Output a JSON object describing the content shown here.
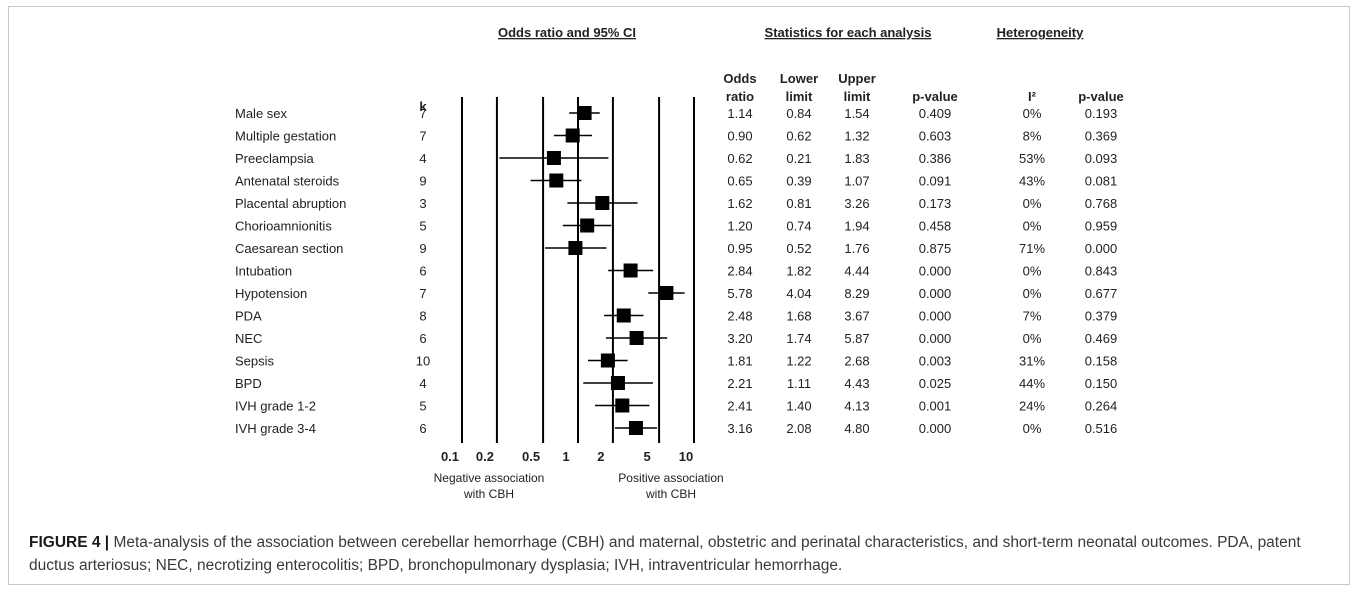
{
  "headers": {
    "or_ci": "Odds ratio and 95% CI",
    "stats": "Statistics for each analysis",
    "heterogeneity": "Heterogeneity",
    "k": "k",
    "odds_ratio_line1": "Odds",
    "odds_ratio_line2": "ratio",
    "lower_line1": "Lower",
    "lower_line2": "limit",
    "upper_line1": "Upper",
    "upper_line2": "limit",
    "pvalue": "p-value",
    "i2": "I²",
    "het_pvalue": "p-value"
  },
  "axis_notes": {
    "negative_line1": "Negative association",
    "negative_line2": "with CBH",
    "positive_line1": "Positive association",
    "positive_line2": "with CBH"
  },
  "caption": {
    "label": "FIGURE 4 |",
    "text": " Meta-analysis of the association between cerebellar hemorrhage (CBH) and maternal, obstetric and perinatal characteristics, and short-term neonatal outcomes. PDA, patent ductus arteriosus; NEC, necrotizing enterocolitis; BPD, bronchopulmonary dysplasia; IVH, intraventricular hemorrhage."
  },
  "chart_data": {
    "type": "forest",
    "x_scale": "log",
    "xlim": [
      0.1,
      10
    ],
    "x_ticks": [
      "0.1",
      "0.2",
      "0.5",
      "1",
      "2",
      "5",
      "10"
    ],
    "x_tick_values": [
      0.1,
      0.2,
      0.5,
      1,
      2,
      5,
      10
    ],
    "marker_color": "#000000",
    "rows": [
      {
        "label": "Male sex",
        "k": "7",
        "or": "1.14",
        "lower": "0.84",
        "upper": "1.54",
        "p": "0.409",
        "i2": "0%",
        "p_het": "0.193"
      },
      {
        "label": "Multiple gestation",
        "k": "7",
        "or": "0.90",
        "lower": "0.62",
        "upper": "1.32",
        "p": "0.603",
        "i2": "8%",
        "p_het": "0.369"
      },
      {
        "label": "Preeclampsia",
        "k": "4",
        "or": "0.62",
        "lower": "0.21",
        "upper": "1.83",
        "p": "0.386",
        "i2": "53%",
        "p_het": "0.093"
      },
      {
        "label": "Antenatal steroids",
        "k": "9",
        "or": "0.65",
        "lower": "0.39",
        "upper": "1.07",
        "p": "0.091",
        "i2": "43%",
        "p_het": "0.081"
      },
      {
        "label": "Placental abruption",
        "k": "3",
        "or": "1.62",
        "lower": "0.81",
        "upper": "3.26",
        "p": "0.173",
        "i2": "0%",
        "p_het": "0.768"
      },
      {
        "label": "Chorioamnionitis",
        "k": "5",
        "or": "1.20",
        "lower": "0.74",
        "upper": "1.94",
        "p": "0.458",
        "i2": "0%",
        "p_het": "0.959"
      },
      {
        "label": "Caesarean section",
        "k": "9",
        "or": "0.95",
        "lower": "0.52",
        "upper": "1.76",
        "p": "0.875",
        "i2": "71%",
        "p_het": "0.000"
      },
      {
        "label": "Intubation",
        "k": "6",
        "or": "2.84",
        "lower": "1.82",
        "upper": "4.44",
        "p": "0.000",
        "i2": "0%",
        "p_het": "0.843"
      },
      {
        "label": "Hypotension",
        "k": "7",
        "or": "5.78",
        "lower": "4.04",
        "upper": "8.29",
        "p": "0.000",
        "i2": "0%",
        "p_het": "0.677"
      },
      {
        "label": "PDA",
        "k": "8",
        "or": "2.48",
        "lower": "1.68",
        "upper": "3.67",
        "p": "0.000",
        "i2": "7%",
        "p_het": "0.379"
      },
      {
        "label": "NEC",
        "k": "6",
        "or": "3.20",
        "lower": "1.74",
        "upper": "5.87",
        "p": "0.000",
        "i2": "0%",
        "p_het": "0.469"
      },
      {
        "label": "Sepsis",
        "k": "10",
        "or": "1.81",
        "lower": "1.22",
        "upper": "2.68",
        "p": "0.003",
        "i2": "31%",
        "p_het": "0.158"
      },
      {
        "label": "BPD",
        "k": "4",
        "or": "2.21",
        "lower": "1.11",
        "upper": "4.43",
        "p": "0.025",
        "i2": "44%",
        "p_het": "0.150"
      },
      {
        "label": "IVH grade 1-2",
        "k": "5",
        "or": "2.41",
        "lower": "1.40",
        "upper": "4.13",
        "p": "0.001",
        "i2": "24%",
        "p_het": "0.264"
      },
      {
        "label": "IVH grade 3-4",
        "k": "6",
        "or": "3.16",
        "lower": "2.08",
        "upper": "4.80",
        "p": "0.000",
        "i2": "0%",
        "p_het": "0.516"
      }
    ]
  }
}
